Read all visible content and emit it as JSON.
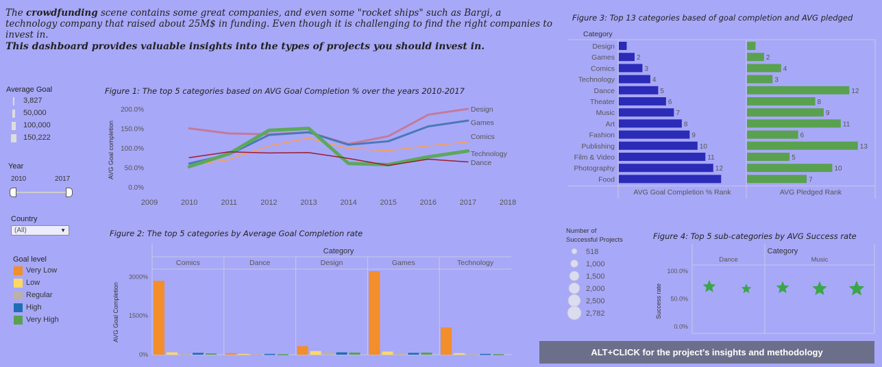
{
  "intro": {
    "p1_a": "The ",
    "p1_bold": "crowdfunding",
    "p1_b": " scene contains some great companies, and even some \"rocket ships\" such as Bargi, a technology company that raised about 25M$ in funding. Even though it is challenging to find the right companies to invest in.",
    "p2": "This dashboard provides valuable insights into the types of projects you should invest in."
  },
  "filters": {
    "avg_goal_title": "Average Goal",
    "avg_goal_items": [
      "3,827",
      "50,000",
      "100,000",
      "150,222"
    ],
    "year_title": "Year",
    "year_min": "2010",
    "year_max": "2017",
    "country_title": "Country",
    "country_value": "(All)",
    "goal_level_title": "Goal level",
    "goal_levels": [
      {
        "label": "Very Low",
        "color": "#f28e2b"
      },
      {
        "label": "Low",
        "color": "#ffd966"
      },
      {
        "label": "Regular",
        "color": "#bab0ac"
      },
      {
        "label": "High",
        "color": "#1f6eb4"
      },
      {
        "label": "Very High",
        "color": "#59a14f"
      }
    ]
  },
  "fig1": {
    "title": "Figure 1: The top 5 categories based on AVG Goal Completion % over the years 2010-2017",
    "ylabel": "AVG Goal completion"
  },
  "fig2": {
    "title": "Figure 2: The top 5 categories by Average Goal Completion rate",
    "header": "Category",
    "ylabel": "AVG Goal Completion"
  },
  "fig3": {
    "title": "Figure 3: Top 13 categories based of goal completion and AVG pledged",
    "header": "Category",
    "xlabel_left": "AVG Goal Completion % Rank",
    "xlabel_right": "AVG Pledged Rank"
  },
  "fig4": {
    "title": "Figure 4: Top 5 sub-categories by AVG Success rate",
    "header": "Category",
    "ylabel": "Success rate",
    "size_title_1": "Number of",
    "size_title_2": "Successful Projects",
    "size_items": [
      "518",
      "1,000",
      "1,500",
      "2,000",
      "2,500",
      "2,782"
    ]
  },
  "cta": "ALT+CLICK for the project’s insights and methodology",
  "chart_data": [
    {
      "type": "line",
      "title": "Figure 1: The top 5 categories based on AVG Goal Completion % over the years 2010-2017",
      "ylabel": "AVG Goal completion",
      "xlim": [
        2009,
        2018
      ],
      "ylim": [
        0,
        200
      ],
      "xticks": [
        "2009",
        "2010",
        "2011",
        "2012",
        "2013",
        "2014",
        "2015",
        "2016",
        "2017",
        "2018"
      ],
      "yticks": [
        "0.0%",
        "50.0%",
        "100.0%",
        "150.0%",
        "200.0%"
      ],
      "x": [
        2010,
        2011,
        2012,
        2013,
        2014,
        2015,
        2016,
        2017
      ],
      "series": [
        {
          "name": "Design",
          "color": "#c47a99",
          "width": 3,
          "values": [
            150,
            137,
            135,
            140,
            110,
            130,
            185,
            200
          ]
        },
        {
          "name": "Games",
          "color": "#4a78b8",
          "width": 3,
          "values": [
            60,
            83,
            133,
            140,
            108,
            117,
            155,
            170
          ]
        },
        {
          "name": "Comics",
          "color": "#ff9f4a",
          "width": 1.5,
          "values": [
            55,
            70,
            105,
            125,
            98,
            93,
            105,
            115
          ]
        },
        {
          "name": "Technology",
          "color": "#5ca85c",
          "width": 5,
          "values": [
            52,
            85,
            145,
            150,
            60,
            57,
            77,
            92
          ]
        },
        {
          "name": "Dance",
          "color": "#9b1c2e",
          "width": 1.5,
          "values": [
            75,
            90,
            87,
            88,
            73,
            55,
            71,
            64
          ]
        }
      ]
    },
    {
      "type": "bar",
      "title": "Figure 2: The top 5 categories by Average Goal Completion rate",
      "ylabel": "AVG Goal Completion",
      "ylim": [
        0,
        3300
      ],
      "yticks": [
        "0%",
        "1500%",
        "3000%"
      ],
      "categories": [
        "Comics",
        "Dance",
        "Design",
        "Games",
        "Technology"
      ],
      "series": [
        {
          "name": "Very Low",
          "color": "#f28e2b",
          "values": [
            2850,
            60,
            330,
            3220,
            1050
          ]
        },
        {
          "name": "Low",
          "color": "#ffd966",
          "values": [
            90,
            30,
            140,
            120,
            60
          ]
        },
        {
          "name": "Regular",
          "color": "#bab0ac",
          "values": [
            30,
            20,
            90,
            70,
            30
          ]
        },
        {
          "name": "High",
          "color": "#1f6eb4",
          "values": [
            70,
            30,
            90,
            70,
            30
          ]
        },
        {
          "name": "Very High",
          "color": "#59a14f",
          "values": [
            50,
            20,
            80,
            80,
            20
          ]
        }
      ]
    },
    {
      "type": "bar",
      "title": "Figure 3: Top 13 categories based of goal completion and AVG pledged",
      "orientation": "horizontal",
      "categories": [
        "Design",
        "Games",
        "Comics",
        "Technology",
        "Dance",
        "Theater",
        "Music",
        "Art",
        "Fashion",
        "Publishing",
        "Film & Video",
        "Photography",
        "Food"
      ],
      "series": [
        {
          "name": "AVG Goal Completion % Rank",
          "color": "#2b2bb8",
          "values": [
            1,
            2,
            3,
            4,
            5,
            6,
            7,
            8,
            9,
            10,
            11,
            12,
            13
          ],
          "labels": [
            "",
            "2",
            "3",
            "4",
            "5",
            "6",
            "7",
            "8",
            "9",
            "10",
            "11",
            "12",
            ""
          ]
        },
        {
          "name": "AVG Pledged Rank",
          "color": "#59a14f",
          "values": [
            1,
            2,
            4,
            3,
            12,
            8,
            9,
            11,
            6,
            13,
            5,
            10,
            7
          ],
          "labels": [
            "",
            "2",
            "4",
            "3",
            "12",
            "8",
            "9",
            "11",
            "6",
            "13",
            "5",
            "10",
            "7"
          ]
        }
      ]
    },
    {
      "type": "scatter",
      "title": "Figure 4: Top 5 sub-categories by AVG Success rate",
      "ylabel": "Success rate",
      "ylim": [
        0,
        100
      ],
      "yticks": [
        "0.0%",
        "50.0%",
        "100.0%"
      ],
      "groups": [
        "Dance",
        "Music"
      ],
      "color": "#3aa64a",
      "points": [
        {
          "group": "Dance",
          "y": 72,
          "size": 1500
        },
        {
          "group": "Dance",
          "y": 68,
          "size": 600
        },
        {
          "group": "Music",
          "y": 70,
          "size": 1500
        },
        {
          "group": "Music",
          "y": 68,
          "size": 2300
        },
        {
          "group": "Music",
          "y": 68,
          "size": 2782
        }
      ]
    }
  ]
}
